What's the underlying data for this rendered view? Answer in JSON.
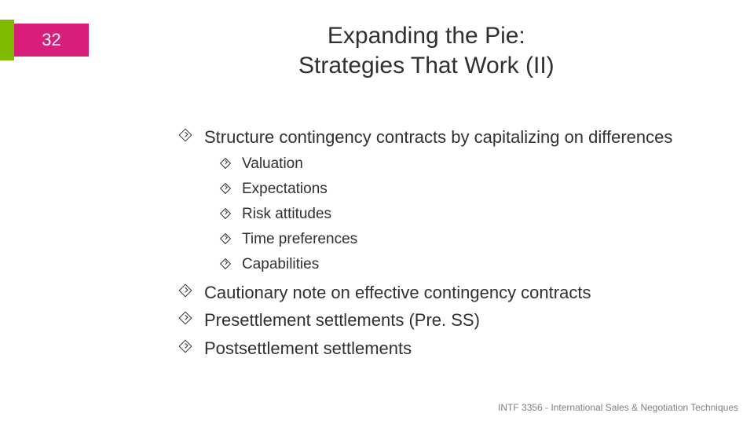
{
  "page_number": "32",
  "accent_color": "#d81e7a",
  "secondary_accent": "#7fba00",
  "title_line1": "Expanding the Pie:",
  "title_line2": "Strategies That Work (II)",
  "bullets": [
    {
      "text": "Structure contingency contracts by capitalizing on differences",
      "subs": [
        "Valuation",
        "Expectations",
        "Risk attitudes",
        "Time preferences",
        "Capabilities"
      ]
    },
    {
      "text": "Cautionary note on effective contingency contracts",
      "subs": []
    },
    {
      "text": "Presettlement settlements (Pre. SS)",
      "subs": []
    },
    {
      "text": "Postsettlement settlements",
      "subs": []
    }
  ],
  "footer": "INTF 3356 - International Sales & Negotiation Techniques"
}
